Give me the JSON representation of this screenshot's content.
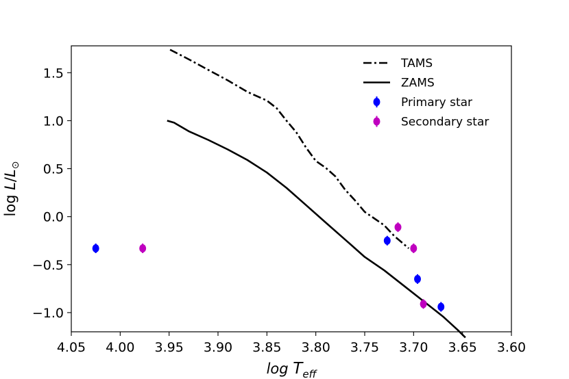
{
  "chart_data": {
    "type": "line",
    "xlabel": "log T_eff",
    "ylabel": "log L/L⊙",
    "xlim": [
      4.05,
      3.6
    ],
    "ylim": [
      -1.2,
      1.78
    ],
    "x_inverted": true,
    "grid": false,
    "legend_position": "top-right",
    "xticks": [
      4.05,
      4.0,
      3.95,
      3.9,
      3.85,
      3.8,
      3.75,
      3.7,
      3.65,
      3.6
    ],
    "xtick_labels": [
      "4.05",
      "4.00",
      "3.95",
      "3.90",
      "3.85",
      "3.80",
      "3.75",
      "3.70",
      "3.65",
      "3.60"
    ],
    "yticks": [
      1.5,
      1.0,
      0.5,
      0.0,
      -0.5,
      -1.0
    ],
    "ytick_labels": [
      "1.5",
      "1.0",
      "0.5",
      "0.0",
      "−0.5",
      "−1.0"
    ],
    "lines": [
      {
        "name": "TAMS",
        "style": "dashdot",
        "color": "#000000",
        "x": [
          3.949,
          3.93,
          3.91,
          3.89,
          3.87,
          3.85,
          3.84,
          3.83,
          3.82,
          3.81,
          3.8,
          3.79,
          3.78,
          3.77,
          3.76,
          3.75,
          3.74,
          3.73,
          3.72,
          3.705
        ],
        "y": [
          1.74,
          1.64,
          1.53,
          1.42,
          1.3,
          1.21,
          1.13,
          1.0,
          0.88,
          0.72,
          0.58,
          0.51,
          0.42,
          0.28,
          0.17,
          0.05,
          -0.02,
          -0.09,
          -0.2,
          -0.33
        ]
      },
      {
        "name": "ZAMS",
        "style": "solid",
        "color": "#000000",
        "x": [
          3.952,
          3.945,
          3.93,
          3.91,
          3.89,
          3.87,
          3.85,
          3.83,
          3.81,
          3.79,
          3.77,
          3.75,
          3.73,
          3.71,
          3.69,
          3.67,
          3.655,
          3.647
        ],
        "y": [
          1.0,
          0.98,
          0.89,
          0.8,
          0.7,
          0.59,
          0.46,
          0.3,
          0.12,
          -0.06,
          -0.24,
          -0.42,
          -0.56,
          -0.72,
          -0.88,
          -1.04,
          -1.18,
          -1.26
        ]
      }
    ],
    "series": [
      {
        "name": "Primary star",
        "color": "#0000ff",
        "x": [
          4.025,
          3.727,
          3.696,
          3.672
        ],
        "y": [
          -0.33,
          -0.25,
          -0.65,
          -0.94
        ],
        "yerr": [
          0.05,
          0.05,
          0.05,
          0.05
        ]
      },
      {
        "name": "Secondary star",
        "color": "#bf00bf",
        "x": [
          3.977,
          3.716,
          3.7,
          3.69
        ],
        "y": [
          -0.33,
          -0.11,
          -0.33,
          -0.91
        ],
        "yerr": [
          0.05,
          0.05,
          0.05,
          0.05
        ]
      }
    ],
    "legend": [
      {
        "label": "TAMS",
        "kind": "line",
        "style": "dashdot",
        "color": "#000000"
      },
      {
        "label": "ZAMS",
        "kind": "line",
        "style": "solid",
        "color": "#000000"
      },
      {
        "label": "Primary star",
        "kind": "errorbar",
        "color": "#0000ff"
      },
      {
        "label": "Secondary star",
        "kind": "errorbar",
        "color": "#bf00bf"
      }
    ]
  }
}
